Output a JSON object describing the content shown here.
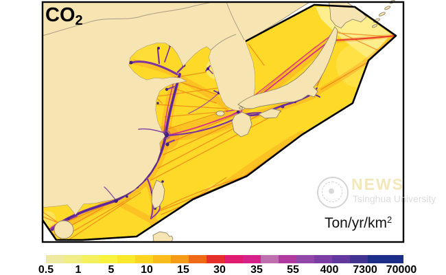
{
  "figure": {
    "title_prefix": "CO",
    "title_sub": "2",
    "unit_prefix": "Ton/yr/km",
    "unit_sup": "2"
  },
  "watermark": {
    "line1": "NEWS",
    "line2": "Tsinghua University"
  },
  "colorbar": {
    "ticks": [
      "0.5",
      "1",
      "5",
      "10",
      "15",
      "30",
      "35",
      "55",
      "400",
      "7300",
      "70000"
    ],
    "segment_colors": [
      "#EDE9A0",
      "#F0ED86",
      "#F5F15E",
      "#FAF23C",
      "#FCE82A",
      "#FDD521",
      "#FABC1B",
      "#F69B18",
      "#EE6A16",
      "#E62E2C",
      "#E01A6E",
      "#D62288",
      "#BE6FAE",
      "#B13AA0",
      "#9147A8",
      "#7B3EA4",
      "#63389E",
      "#423390",
      "#1D2D8A"
    ],
    "wide_last_segment": true
  },
  "map": {
    "land_color": "#F7E4B3",
    "outside_sea_color": "#FFFFFF",
    "domain_fill": "#FFD928",
    "domain_boundary_color": "#000000",
    "lane_color_low": "#EF7B14",
    "lane_color_high": "#D92B8C",
    "lane_color_main": "#7A35A3",
    "lane_color_extreme": "#41207E"
  }
}
